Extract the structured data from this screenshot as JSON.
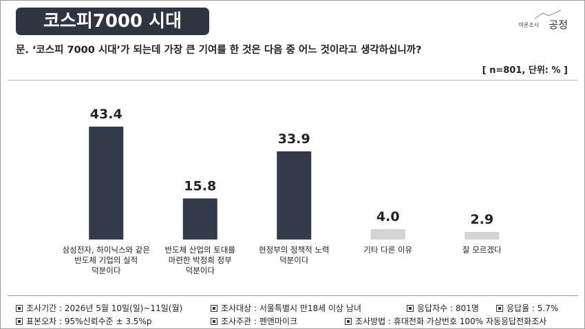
{
  "header": {
    "title": "코스피7000 시대",
    "logo_small": "여론조사",
    "logo": "공정"
  },
  "question": "문. ‘코스피 7000 시대’가 되는데 가장 큰 기여를 한 것은 다음 중 어느 것이라고 생각하십니까?",
  "sample_note": "[ n=801, 단위: % ]",
  "chart_data": {
    "type": "bar",
    "categories": [
      "삼성전자, 하이닉스와 같은\n반도체 기업의 실적\n덕분이다",
      "반도체 산업의 토대를\n마련한 박정희 정부\n덕분이다",
      "현정부의 정책적 노력\n덕분이다",
      "기타 다른 이유",
      "잘 모르겠다"
    ],
    "values": [
      43.4,
      15.8,
      33.9,
      4.0,
      2.9
    ],
    "value_labels": [
      "43.4",
      "15.8",
      "33.9",
      "4.0",
      "2.9"
    ],
    "colors": [
      "#333b4a",
      "#333b4a",
      "#333b4a",
      "#d4d4d4",
      "#d4d4d4"
    ]
  },
  "footer": {
    "rows": [
      [
        "조사기간 : 2026년 5월 10일(일)~11일(월)",
        "조사대상 : 서울특별시 만18세 이상 남녀",
        "응답자수 : 801명",
        "응답율 : 5.7%"
      ],
      [
        "표본오차 : 95%신뢰수준 ± 3.5%p",
        "조사주관 : 펜앤마이크",
        "조사방법 : 휴대전화 가상번호 100% 자동응답전화조사"
      ]
    ]
  }
}
